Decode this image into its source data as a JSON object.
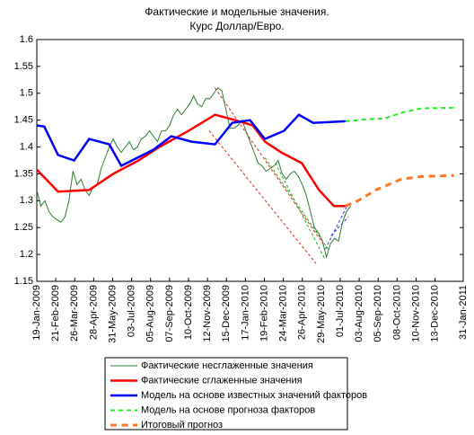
{
  "chart_data": {
    "type": "line",
    "title": [
      "Фактические и модельные значения.",
      "Курс Доллар/Евро."
    ],
    "xlim": [
      "2009-01-19",
      "2011-01-31"
    ],
    "xticks": [
      {
        "value": "2009-01-19",
        "label": "19-Jan-2009"
      },
      {
        "value": "2009-02-21",
        "label": "21-Feb-2009"
      },
      {
        "value": "2009-03-26",
        "label": "26-Mar-2009"
      },
      {
        "value": "2009-04-28",
        "label": "28-Apr-2009"
      },
      {
        "value": "2009-05-31",
        "label": "31-May-2009"
      },
      {
        "value": "2009-07-03",
        "label": "03-Jul-2009"
      },
      {
        "value": "2009-08-05",
        "label": "05-Aug-2009"
      },
      {
        "value": "2009-09-07",
        "label": "07-Sep-2009"
      },
      {
        "value": "2009-10-10",
        "label": "10-Oct-2009"
      },
      {
        "value": "2009-11-12",
        "label": "12-Nov-2009"
      },
      {
        "value": "2009-12-15",
        "label": "15-Dec-2009"
      },
      {
        "value": "2010-01-17",
        "label": "17-Jan-2010"
      },
      {
        "value": "2010-02-19",
        "label": "19-Feb-2010"
      },
      {
        "value": "2010-03-24",
        "label": "24-Mar-2010"
      },
      {
        "value": "2010-04-26",
        "label": "26-Apr-2010"
      },
      {
        "value": "2010-05-29",
        "label": "29-May-2010"
      },
      {
        "value": "2010-07-01",
        "label": "01-Jul-2010"
      },
      {
        "value": "2010-08-03",
        "label": "03-Aug-2010"
      },
      {
        "value": "2010-09-05",
        "label": "05-Sep-2010"
      },
      {
        "value": "2010-10-08",
        "label": "08-Oct-2010"
      },
      {
        "value": "2010-11-10",
        "label": "10-Nov-2010"
      },
      {
        "value": "2010-12-13",
        "label": "13-Dec-2010"
      },
      {
        "value": "2011-01-31",
        "label": "31-Jan-2011"
      }
    ],
    "ylim": [
      1.15,
      1.6
    ],
    "yticks": [
      1.15,
      1.2,
      1.25,
      1.3,
      1.35,
      1.4,
      1.45,
      1.5,
      1.55,
      1.6
    ],
    "series": [
      {
        "name": "Фактические несглаженные значения",
        "color": "#2e7d32",
        "width": 1,
        "dash": "solid",
        "x": [
          "2009-01-19",
          "2009-01-26",
          "2009-02-02",
          "2009-02-09",
          "2009-02-16",
          "2009-02-23",
          "2009-03-02",
          "2009-03-09",
          "2009-03-16",
          "2009-03-23",
          "2009-03-30",
          "2009-04-06",
          "2009-04-13",
          "2009-04-20",
          "2009-04-27",
          "2009-05-04",
          "2009-05-11",
          "2009-05-18",
          "2009-05-25",
          "2009-06-01",
          "2009-06-08",
          "2009-06-15",
          "2009-06-22",
          "2009-06-29",
          "2009-07-06",
          "2009-07-13",
          "2009-07-20",
          "2009-07-27",
          "2009-08-03",
          "2009-08-10",
          "2009-08-17",
          "2009-08-24",
          "2009-08-31",
          "2009-09-07",
          "2009-09-14",
          "2009-09-21",
          "2009-09-28",
          "2009-10-05",
          "2009-10-12",
          "2009-10-19",
          "2009-10-26",
          "2009-11-02",
          "2009-11-09",
          "2009-11-16",
          "2009-11-23",
          "2009-11-30",
          "2009-12-07",
          "2009-12-14",
          "2009-12-21",
          "2009-12-28",
          "2010-01-04",
          "2010-01-11",
          "2010-01-18",
          "2010-01-25",
          "2010-02-01",
          "2010-02-08",
          "2010-02-15",
          "2010-02-22",
          "2010-03-01",
          "2010-03-08",
          "2010-03-15",
          "2010-03-22",
          "2010-03-29",
          "2010-04-05",
          "2010-04-12",
          "2010-04-19",
          "2010-04-26",
          "2010-05-03",
          "2010-05-10",
          "2010-05-17",
          "2010-05-24",
          "2010-05-31",
          "2010-06-07",
          "2010-06-14",
          "2010-06-21",
          "2010-06-28",
          "2010-07-05",
          "2010-07-12",
          "2010-07-19"
        ],
        "values": [
          1.32,
          1.29,
          1.3,
          1.28,
          1.27,
          1.265,
          1.26,
          1.27,
          1.3,
          1.355,
          1.33,
          1.34,
          1.32,
          1.31,
          1.325,
          1.33,
          1.36,
          1.38,
          1.4,
          1.415,
          1.4,
          1.39,
          1.4,
          1.41,
          1.395,
          1.4,
          1.415,
          1.42,
          1.43,
          1.42,
          1.41,
          1.43,
          1.43,
          1.44,
          1.46,
          1.47,
          1.46,
          1.47,
          1.48,
          1.495,
          1.48,
          1.475,
          1.49,
          1.49,
          1.5,
          1.51,
          1.505,
          1.47,
          1.435,
          1.435,
          1.44,
          1.45,
          1.43,
          1.41,
          1.39,
          1.37,
          1.365,
          1.355,
          1.36,
          1.365,
          1.375,
          1.35,
          1.34,
          1.35,
          1.355,
          1.345,
          1.33,
          1.31,
          1.28,
          1.25,
          1.24,
          1.225,
          1.195,
          1.22,
          1.23,
          1.225,
          1.26,
          1.28,
          1.29
        ]
      },
      {
        "name": "Фактические сглаженные значения",
        "color": "#ff0000",
        "width": 2.5,
        "dash": "solid",
        "x": [
          "2009-01-19",
          "2009-02-25",
          "2009-04-20",
          "2009-06-01",
          "2009-07-15",
          "2009-08-20",
          "2009-10-10",
          "2009-11-25",
          "2009-12-30",
          "2010-01-30",
          "2010-02-20",
          "2010-03-20",
          "2010-04-25",
          "2010-05-25",
          "2010-06-20",
          "2010-07-10"
        ],
        "values": [
          1.358,
          1.317,
          1.32,
          1.35,
          1.375,
          1.4,
          1.43,
          1.46,
          1.45,
          1.44,
          1.41,
          1.39,
          1.37,
          1.32,
          1.29,
          1.29
        ]
      },
      {
        "name": "Модель на основе известных значений факторов",
        "color": "#0000ff",
        "width": 2.5,
        "dash": "solid",
        "x": [
          "2009-01-19",
          "2009-02-01",
          "2009-02-25",
          "2009-03-25",
          "2009-04-20",
          "2009-05-25",
          "2009-06-15",
          "2009-08-10",
          "2009-09-10",
          "2009-10-15",
          "2009-11-25",
          "2009-12-25",
          "2010-01-25",
          "2010-02-20",
          "2010-03-25",
          "2010-04-20",
          "2010-05-15",
          "2010-07-10"
        ],
        "values": [
          1.44,
          1.438,
          1.385,
          1.375,
          1.415,
          1.405,
          1.365,
          1.395,
          1.42,
          1.41,
          1.405,
          1.445,
          1.45,
          1.415,
          1.43,
          1.46,
          1.445,
          1.448
        ]
      },
      {
        "name": "Модель на основе прогноза факторов",
        "color": "#22ee22",
        "width": 2,
        "dash": "dashed",
        "x": [
          "2010-07-10",
          "2010-08-20",
          "2010-09-15",
          "2010-10-20",
          "2010-11-20",
          "2011-01-15"
        ],
        "values": [
          1.448,
          1.452,
          1.453,
          1.465,
          1.472,
          1.473
        ]
      },
      {
        "name": "Итоговый прогноз",
        "color": "#ff7722",
        "width": 3,
        "dash": "dashed",
        "x": [
          "2010-07-10",
          "2010-08-01",
          "2010-09-01",
          "2010-10-15",
          "2010-11-20",
          "2011-01-15"
        ],
        "values": [
          1.29,
          1.3,
          1.32,
          1.34,
          1.345,
          1.347
        ]
      }
    ],
    "channels": [
      {
        "color": "#dd2222",
        "x": [
          "2009-11-25",
          "2010-06-01"
        ],
        "values": [
          1.51,
          1.22
        ]
      },
      {
        "color": "#dd2222",
        "x": [
          "2009-11-15",
          "2010-05-20"
        ],
        "values": [
          1.43,
          1.183
        ]
      },
      {
        "color": "#22aa22",
        "x": [
          "2010-03-10",
          "2010-06-05"
        ],
        "values": [
          1.37,
          1.19
        ]
      },
      {
        "color": "#22aa22",
        "x": [
          "2010-02-20",
          "2010-06-10"
        ],
        "values": [
          1.38,
          1.21
        ]
      },
      {
        "color": "#2233ee",
        "x": [
          "2010-06-05",
          "2010-07-15"
        ],
        "values": [
          1.21,
          1.295
        ]
      },
      {
        "color": "#2233ee",
        "x": [
          "2010-06-15",
          "2010-07-15"
        ],
        "values": [
          1.235,
          1.27
        ]
      }
    ]
  }
}
